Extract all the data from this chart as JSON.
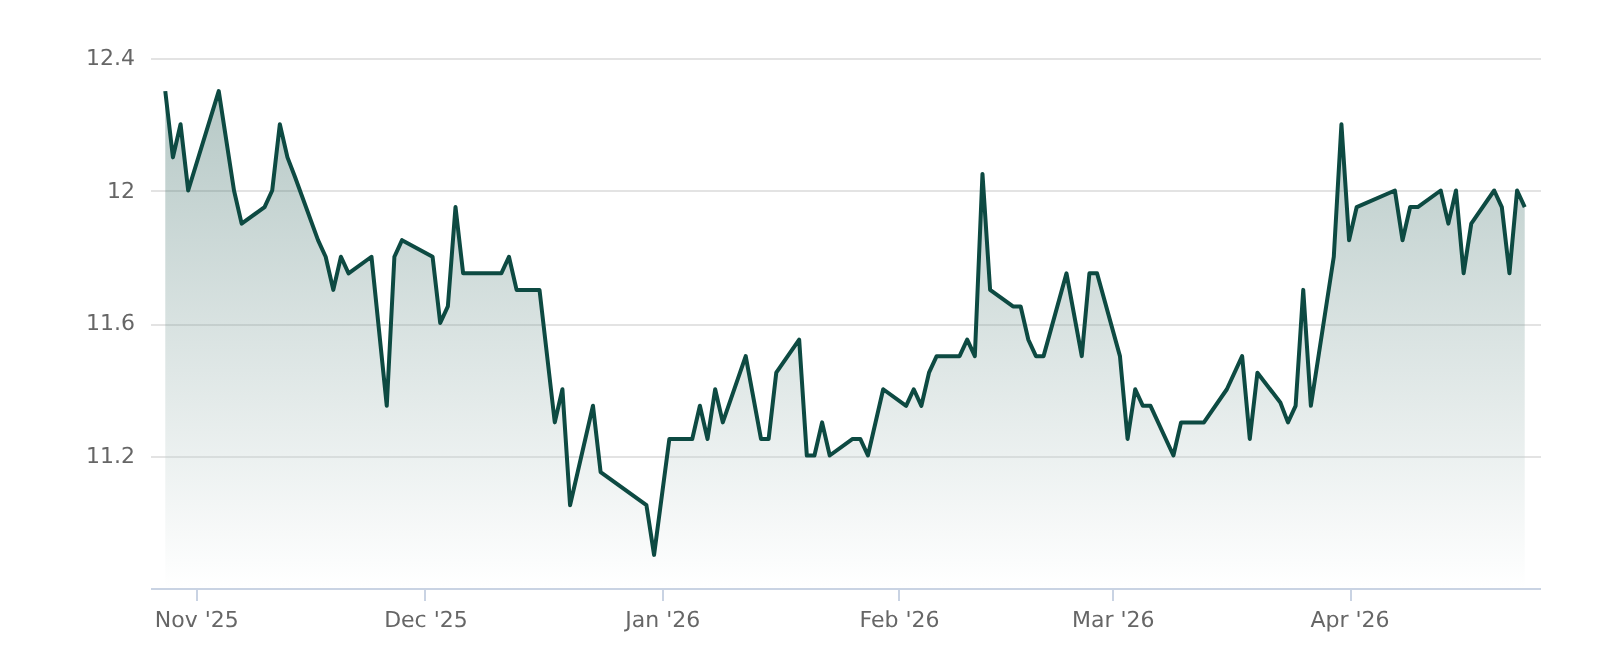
{
  "chart_data": {
    "type": "area",
    "x": [
      "2025-10-28",
      "2025-10-29",
      "2025-10-30",
      "2025-10-31",
      "2025-11-04",
      "2025-11-06",
      "2025-11-07",
      "2025-11-10",
      "2025-11-11",
      "2025-11-12",
      "2025-11-13",
      "2025-11-14",
      "2025-11-17",
      "2025-11-18",
      "2025-11-19",
      "2025-11-20",
      "2025-11-21",
      "2025-11-24",
      "2025-11-26",
      "2025-11-27",
      "2025-11-28",
      "2025-12-02",
      "2025-12-03",
      "2025-12-04",
      "2025-12-05",
      "2025-12-06",
      "2025-12-11",
      "2025-12-12",
      "2025-12-13",
      "2025-12-16",
      "2025-12-18",
      "2025-12-19",
      "2025-12-20",
      "2025-12-23",
      "2025-12-24",
      "2025-12-30",
      "2025-12-31",
      "2026-01-02",
      "2026-01-05",
      "2026-01-06",
      "2026-01-07",
      "2026-01-08",
      "2026-01-09",
      "2026-01-12",
      "2026-01-14",
      "2026-01-15",
      "2026-01-16",
      "2026-01-19",
      "2026-01-20",
      "2026-01-21",
      "2026-01-22",
      "2026-01-23",
      "2026-01-26",
      "2026-01-27",
      "2026-01-28",
      "2026-01-30",
      "2026-02-02",
      "2026-02-03",
      "2026-02-04",
      "2026-02-05",
      "2026-02-06",
      "2026-02-09",
      "2026-02-10",
      "2026-02-11",
      "2026-02-12",
      "2026-02-13",
      "2026-02-16",
      "2026-02-17",
      "2026-02-18",
      "2026-02-19",
      "2026-02-20",
      "2026-02-23",
      "2026-02-25",
      "2026-02-26",
      "2026-02-27",
      "2026-03-02",
      "2026-03-03",
      "2026-03-04",
      "2026-03-05",
      "2026-03-06",
      "2026-03-09",
      "2026-03-10",
      "2026-03-13",
      "2026-03-16",
      "2026-03-18",
      "2026-03-19",
      "2026-03-20",
      "2026-03-23",
      "2026-03-24",
      "2026-03-25",
      "2026-03-26",
      "2026-03-27",
      "2026-03-30",
      "2026-03-31",
      "2026-04-01",
      "2026-04-02",
      "2026-04-07",
      "2026-04-08",
      "2026-04-09",
      "2026-04-10",
      "2026-04-13",
      "2026-04-14",
      "2026-04-15",
      "2026-04-16",
      "2026-04-17",
      "2026-04-20",
      "2026-04-21",
      "2026-04-22",
      "2026-04-23",
      "2026-04-24"
    ],
    "series": [
      {
        "color": "#0d4a42",
        "values": [
          12.3,
          12.1,
          12.2,
          12.0,
          12.3,
          12.0,
          11.9,
          11.95,
          12.0,
          12.2,
          12.1,
          12.04,
          11.85,
          11.8,
          11.7,
          11.8,
          11.75,
          11.8,
          11.35,
          11.8,
          11.85,
          11.8,
          11.6,
          11.65,
          11.95,
          11.75,
          11.75,
          11.8,
          11.7,
          11.7,
          11.3,
          11.4,
          11.05,
          11.35,
          11.15,
          11.05,
          10.9,
          11.25,
          11.25,
          11.35,
          11.25,
          11.4,
          11.3,
          11.5,
          11.25,
          11.25,
          11.45,
          11.55,
          11.2,
          11.2,
          11.3,
          11.2,
          11.25,
          11.25,
          11.2,
          11.4,
          11.35,
          11.4,
          11.35,
          11.45,
          11.5,
          11.5,
          11.55,
          11.5,
          12.05,
          11.7,
          11.65,
          11.65,
          11.55,
          11.5,
          11.5,
          11.75,
          11.5,
          11.75,
          11.75,
          11.5,
          11.25,
          11.4,
          11.35,
          11.35,
          11.2,
          11.3,
          11.3,
          11.4,
          11.5,
          11.25,
          11.45,
          11.36,
          11.3,
          11.35,
          11.7,
          11.35,
          11.8,
          12.2,
          11.85,
          11.95,
          12.0,
          11.85,
          11.95,
          11.95,
          12.0,
          11.9,
          12.0,
          11.75,
          11.9,
          12.0,
          11.95,
          11.75,
          12.0,
          11.95
        ]
      }
    ],
    "xlim": [
      "2025-10-26",
      "2026-04-26"
    ],
    "xticks": [
      {
        "value": "2025-11-01",
        "label": "Nov '25"
      },
      {
        "value": "2025-12-01",
        "label": "Dec '25"
      },
      {
        "value": "2026-01-01",
        "label": "Jan '26"
      },
      {
        "value": "2026-02-01",
        "label": "Feb '26"
      },
      {
        "value": "2026-03-01",
        "label": "Mar '26"
      },
      {
        "value": "2026-04-01",
        "label": "Apr '26"
      }
    ],
    "ylim": [
      10.8,
      12.4
    ],
    "yticks": [
      11.2,
      11.6,
      12,
      12.4
    ],
    "grid": "y"
  }
}
